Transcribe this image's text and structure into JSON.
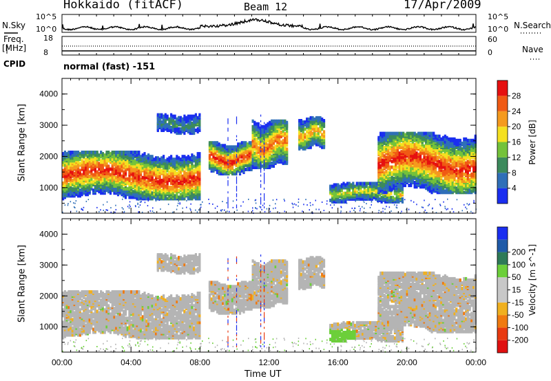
{
  "header": {
    "radar": "Hokkaido (fitACF)",
    "beam": "Beam 12",
    "date": "17/Apr/2009"
  },
  "side_labels": {
    "nsky": "N.Sky",
    "nsky_hi": "10^5",
    "nsky_lo": "10^0",
    "nsearch": "N.Search",
    "nsearch_hi": "10^5",
    "nsearch_lo": "10^0",
    "freq": "Freq.",
    "freq_unit": "[MHz]",
    "freq_hi": "18",
    "freq_lo": "8",
    "nave": "Nave",
    "nave_hi": "60",
    "nave_lo": "0",
    "cpid": "CPID",
    "cpid_value": "normal (fast) -151"
  },
  "colors": {
    "power_scale": [
      "#1a2ef0",
      "#2f6fb8",
      "#3c8a5c",
      "#74c23a",
      "#f5e020",
      "#f59a1e",
      "#f05a14",
      "#e61010"
    ],
    "velocity_scale": [
      "#1a2ef0",
      "#1f5aa8",
      "#2e7a58",
      "#6ccf3a",
      "#c8c8c8",
      "#c8c8c8",
      "#f0b020",
      "#f07a10",
      "#e83a10",
      "#e01010"
    ],
    "ground_scatter": "#b4b4b4",
    "background": "#ffffff"
  },
  "chart_data": [
    {
      "type": "heatmap",
      "panel": "power",
      "ylabel": "Slant Range [km]",
      "yticks": [
        "1000",
        "2000",
        "3000",
        "4000"
      ],
      "ylim": [
        180,
        4500
      ],
      "xlim": [
        "00:00",
        "24:00"
      ],
      "colorbar": {
        "label": "Power [dB]",
        "ticks": [
          "4",
          "8",
          "12",
          "16",
          "20",
          "24",
          "28"
        ],
        "range": [
          0,
          32
        ]
      },
      "echo_regions": [
        {
          "t_start": 0.0,
          "t_end": 8.0,
          "range_km": [
            700,
            2200
          ],
          "peak_db": 30
        },
        {
          "t_start": 5.5,
          "t_end": 8.0,
          "range_km": [
            2800,
            3400
          ],
          "peak_db": 10
        },
        {
          "t_start": 8.5,
          "t_end": 11.0,
          "range_km": [
            1500,
            2500
          ],
          "peak_db": 30
        },
        {
          "t_start": 11.0,
          "t_end": 13.0,
          "range_km": [
            1700,
            3200
          ],
          "peak_db": 26
        },
        {
          "t_start": 13.7,
          "t_end": 15.2,
          "range_km": [
            2300,
            3300
          ],
          "peak_db": 22
        },
        {
          "t_start": 15.5,
          "t_end": 19.7,
          "range_km": [
            600,
            1200
          ],
          "peak_db": 18
        },
        {
          "t_start": 18.3,
          "t_end": 24.0,
          "range_km": [
            900,
            2800
          ],
          "peak_db": 30
        }
      ]
    },
    {
      "type": "heatmap",
      "panel": "velocity",
      "ylabel": "Slant Range [km]",
      "xlabel": "Time UT",
      "xticks": [
        "00:00",
        "04:00",
        "08:00",
        "12:00",
        "16:00",
        "20:00",
        "00:00"
      ],
      "yticks": [
        "1000",
        "2000",
        "3000",
        "4000"
      ],
      "ylim": [
        180,
        4500
      ],
      "colorbar": {
        "label": "Velocity [m s^-1]",
        "ticks": [
          "200",
          "100",
          "50",
          "15",
          "-15",
          "-50",
          "-100",
          "-200"
        ]
      },
      "notes": "mostly ground scatter (grey); green positive velocities near 16:00-17:00 at ~700-1000 km"
    }
  ]
}
